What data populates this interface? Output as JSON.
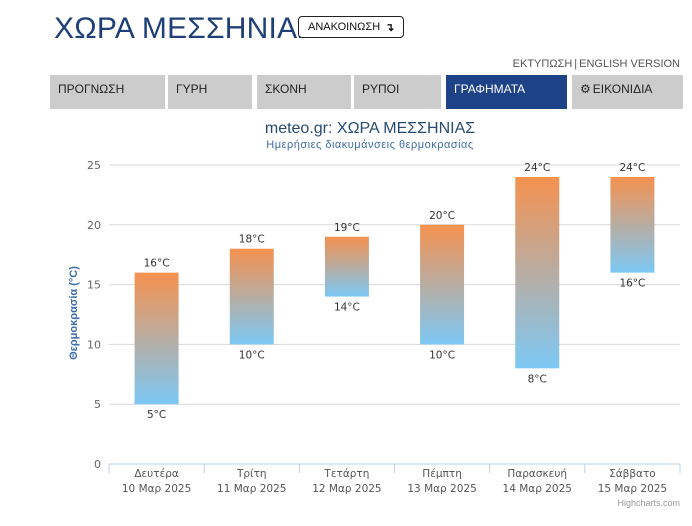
{
  "header": {
    "title": "ΧΩΡΑ ΜΕΣΣΗΝΙΑΣ",
    "announcement_label": "ΑΝΑΚΟΙΝΩΣΗ",
    "print_label": "ΕΚΤΥΠΩΣΗ",
    "english_label": "ENGLISH VERSION"
  },
  "tabs": [
    {
      "label": "ΠΡΟΓΝΩΣΗ"
    },
    {
      "label": "ΓΥΡΗ"
    },
    {
      "label": "ΣΚΟΝΗ"
    },
    {
      "label": "ΡΥΠΟΙ"
    },
    {
      "label": "ΓΡΑΦΗΜΑΤΑ"
    },
    {
      "label": "ΕΙΚΟΝΙΔΙΑ"
    }
  ],
  "colors": {
    "title": "#1f3f77",
    "active_tab": "#1e4287",
    "tab": "#cccccc",
    "bar_top": "#f5914f",
    "bar_bottom": "#7cc8f5"
  },
  "chart_data": {
    "type": "bar",
    "subtype": "columnrange",
    "title": "meteo.gr: ΧΩΡΑ ΜΕΣΣΗΝΙΑΣ",
    "subtitle": "Ημερήσιες διακυμάνσεις θερμοκρασίας",
    "ylabel": "Θερμοκρασία (°C)",
    "xlabel": "",
    "ylim": [
      0,
      25
    ],
    "yticks": [
      0,
      5,
      10,
      15,
      20,
      25
    ],
    "grid": true,
    "categories": [
      {
        "day": "Δευτέρα",
        "date": "10 Μαρ 2025"
      },
      {
        "day": "Τρίτη",
        "date": "11 Μαρ 2025"
      },
      {
        "day": "Τετάρτη",
        "date": "12 Μαρ 2025"
      },
      {
        "day": "Πέμπτη",
        "date": "13 Μαρ 2025"
      },
      {
        "day": "Παρασκευή",
        "date": "14 Μαρ 2025"
      },
      {
        "day": "Σάββατο",
        "date": "15 Μαρ 2025"
      }
    ],
    "series": [
      {
        "low": [
          5,
          10,
          14,
          10,
          8,
          16
        ],
        "high": [
          16,
          18,
          19,
          20,
          24,
          24
        ],
        "low_labels": [
          "5°C",
          "10°C",
          "14°C",
          "10°C",
          "8°C",
          "16°C"
        ],
        "high_labels": [
          "16°C",
          "18°C",
          "19°C",
          "20°C",
          "24°C",
          "24°C"
        ]
      }
    ],
    "credits": "Highcharts.com"
  }
}
